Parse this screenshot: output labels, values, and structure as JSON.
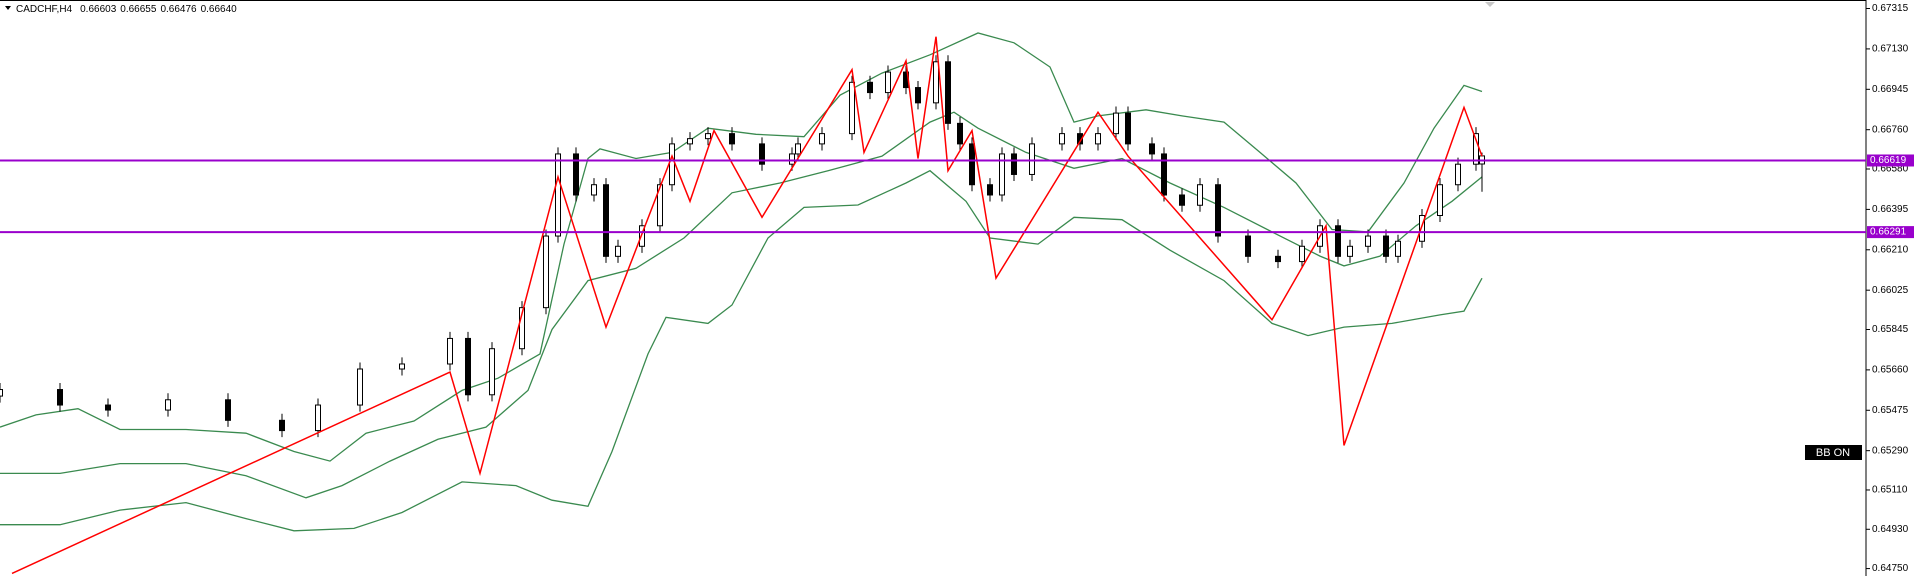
{
  "chart_data": {
    "type": "candlestick",
    "title": "CADCHF,H4",
    "header_values": [
      0.66603,
      0.66655,
      0.66476,
      {
        "value": 0.6664,
        "label": "0.66640"
      }
    ],
    "annotation": "BB ON",
    "xlim": [
      0,
      311
    ],
    "ylim": [
      0.64716,
      0.67354
    ],
    "yticks": [
      0.67315,
      {
        "value": 0.6713,
        "label": "0.67130"
      },
      0.66945,
      {
        "value": 0.6676,
        "label": "0.66760"
      },
      {
        "value": 0.6658,
        "label": "0.66580"
      },
      0.66395,
      {
        "value": 0.6621,
        "label": "0.66210"
      },
      0.66025,
      0.65845,
      {
        "value": 0.6566,
        "label": "0.65660"
      },
      0.65475,
      {
        "value": 0.6529,
        "label": "0.65290"
      },
      {
        "value": 0.6511,
        "label": "0.65110"
      },
      {
        "value": 0.6493,
        "label": "0.64930"
      },
      {
        "value": 0.6475,
        "label": "0.64750"
      }
    ],
    "up_color": "#ffffff",
    "down_color": "#000000",
    "candles": {
      "x": [
        0,
        10,
        18,
        28,
        38,
        47,
        53,
        60,
        67,
        75,
        78,
        82,
        87,
        91,
        93,
        96,
        99,
        101,
        103,
        107,
        110,
        112,
        115,
        118,
        122,
        127,
        132,
        133,
        137,
        142,
        145,
        148,
        151,
        153,
        156,
        158,
        160,
        162,
        165,
        167,
        169,
        172,
        177,
        180,
        183,
        186,
        188,
        192,
        194,
        197,
        200,
        203,
        208,
        213,
        217,
        220,
        223,
        225,
        228,
        231,
        233,
        237,
        240,
        243,
        246,
        247
      ],
      "open": [
        0.6554,
        0.6557,
        0.65499,
        0.65476,
        0.65523,
        0.65429,
        0.65382,
        0.65499,
        0.65664,
        0.65687,
        0.65804,
        0.65546,
        0.65757,
        0.65945,
        0.66273,
        0.66649,
        0.66461,
        0.66508,
        0.6618,
        0.66226,
        0.6632,
        0.66508,
        0.66695,
        0.66719,
        0.66742,
        0.66695,
        0.66602,
        0.66649,
        0.66695,
        0.66742,
        0.66977,
        0.6693,
        0.67024,
        0.66953,
        0.66883,
        0.67071,
        0.66789,
        0.66695,
        0.66508,
        0.66461,
        0.66649,
        0.66555,
        0.66695,
        0.66742,
        0.66695,
        0.66742,
        0.66836,
        0.66695,
        0.66649,
        0.66461,
        0.66414,
        0.66508,
        0.66273,
        0.6618,
        0.66156,
        0.66226,
        0.6632,
        0.6618,
        0.66226,
        0.66273,
        0.6618,
        0.66249,
        0.66367,
        0.66508,
        0.66602,
        0.66603
      ],
      "high": [
        0.656,
        0.656,
        0.65529,
        0.65553,
        0.65553,
        0.65459,
        0.65529,
        0.65694,
        0.65717,
        0.65834,
        0.65834,
        0.65787,
        0.65975,
        0.66303,
        0.66679,
        0.66679,
        0.66538,
        0.66538,
        0.66256,
        0.6635,
        0.66538,
        0.66725,
        0.66749,
        0.66772,
        0.66772,
        0.66725,
        0.66679,
        0.66725,
        0.66772,
        0.67007,
        0.67007,
        0.67054,
        0.67054,
        0.66983,
        0.67101,
        0.67101,
        0.66819,
        0.66725,
        0.66538,
        0.66679,
        0.66679,
        0.66725,
        0.66772,
        0.66772,
        0.66772,
        0.66866,
        0.66866,
        0.66725,
        0.66679,
        0.66491,
        0.66538,
        0.66538,
        0.66303,
        0.6621,
        0.66256,
        0.6635,
        0.6635,
        0.66256,
        0.66303,
        0.66303,
        0.66279,
        0.66397,
        0.66538,
        0.66632,
        0.66772,
        0.66655
      ],
      "low": [
        0.6551,
        0.65469,
        0.65446,
        0.65446,
        0.65399,
        0.65352,
        0.65352,
        0.65469,
        0.65634,
        0.65657,
        0.65516,
        0.65516,
        0.65727,
        0.65915,
        0.66243,
        0.66431,
        0.66431,
        0.6615,
        0.6615,
        0.66196,
        0.6629,
        0.66478,
        0.66665,
        0.66689,
        0.66665,
        0.66572,
        0.66572,
        0.66619,
        0.66665,
        0.66712,
        0.669,
        0.669,
        0.66923,
        0.66853,
        0.66853,
        0.66759,
        0.66665,
        0.66478,
        0.66431,
        0.66431,
        0.66525,
        0.66525,
        0.66665,
        0.66665,
        0.66665,
        0.66712,
        0.66665,
        0.66619,
        0.66431,
        0.66384,
        0.66384,
        0.66243,
        0.6615,
        0.66126,
        0.66126,
        0.66196,
        0.6615,
        0.6615,
        0.66196,
        0.6615,
        0.6615,
        0.66219,
        0.66337,
        0.66478,
        0.66572,
        0.66476
      ],
      "close": [
        0.6557,
        0.65499,
        0.65476,
        0.65523,
        0.65429,
        0.65382,
        0.65499,
        0.65664,
        0.65687,
        0.65804,
        0.65546,
        0.65757,
        0.65945,
        0.66273,
        0.66649,
        0.66461,
        0.66508,
        0.6618,
        0.66226,
        0.6632,
        0.66508,
        0.66695,
        0.66719,
        0.66742,
        0.66695,
        0.66602,
        0.66649,
        0.66695,
        0.66742,
        0.66977,
        0.6693,
        0.67024,
        0.66953,
        0.66883,
        0.67071,
        0.66789,
        0.66695,
        0.66508,
        0.66461,
        0.66649,
        0.66555,
        0.66695,
        0.66742,
        0.66695,
        0.66742,
        0.66836,
        0.66695,
        0.66649,
        0.66461,
        0.66414,
        0.66508,
        0.66273,
        0.6618,
        0.66156,
        0.66226,
        0.6632,
        0.6618,
        0.66226,
        0.66273,
        0.6618,
        0.66249,
        0.66367,
        0.66508,
        0.66602,
        0.66742,
        0.6664
      ]
    },
    "bands": [
      {
        "color": "#3a8a4f",
        "x": [
          0,
          6,
          13,
          20,
          31,
          41,
          49,
          55,
          61,
          69,
          77,
          83,
          90,
          94,
          98,
          100,
          106,
          112,
          118,
          126,
          134,
          140,
          147,
          155,
          163,
          169,
          175,
          179,
          183,
          191,
          197,
          204,
          210,
          216,
          222,
          228,
          234,
          239,
          244,
          247
        ],
        "values": [
          0.65398,
          0.65454,
          0.65482,
          0.65387,
          0.65387,
          0.6537,
          0.65286,
          0.65242,
          0.6537,
          0.65426,
          0.65566,
          0.65622,
          0.65733,
          0.66236,
          0.66628,
          0.66672,
          0.66628,
          0.66656,
          0.66767,
          0.66739,
          0.66728,
          0.66918,
          0.67019,
          0.67103,
          0.67203,
          0.67158,
          0.67047,
          0.66795,
          0.66823,
          0.66851,
          0.66823,
          0.66795,
          0.66656,
          0.66516,
          0.66303,
          0.66292,
          0.66516,
          0.66767,
          0.66963,
          0.66935
        ]
      },
      {
        "color": "#3a8a4f",
        "x": [
          0,
          10,
          20,
          31,
          41,
          51,
          57,
          65,
          73,
          81,
          88,
          92,
          98,
          106,
          114,
          122,
          130,
          138,
          147,
          155,
          159,
          163,
          171,
          179,
          187,
          195,
          204,
          212,
          220,
          224,
          230,
          236,
          242,
          247
        ],
        "values": [
          0.65186,
          0.65186,
          0.65231,
          0.65231,
          0.65175,
          0.65074,
          0.6513,
          0.65242,
          0.65342,
          0.65398,
          0.65566,
          0.65845,
          0.66069,
          0.66125,
          0.66264,
          0.66471,
          0.66516,
          0.66572,
          0.66639,
          0.66795,
          0.6684,
          0.66767,
          0.66656,
          0.66583,
          0.66628,
          0.66516,
          0.66404,
          0.66292,
          0.66181,
          0.66136,
          0.66181,
          0.6632,
          0.66432,
          0.66544
        ]
      },
      {
        "color": "#3a8a4f",
        "x": [
          0,
          10,
          20,
          31,
          41,
          49,
          59,
          67,
          77,
          86,
          92,
          98,
          102,
          108,
          111,
          118,
          122,
          128,
          134,
          143,
          151,
          155,
          161,
          165,
          173,
          179,
          187,
          195,
          204,
          212,
          218,
          224,
          232,
          240,
          244,
          247
        ],
        "values": [
          0.64951,
          0.64951,
          0.65018,
          0.65052,
          0.64979,
          0.64923,
          0.64934,
          0.65007,
          0.65147,
          0.6513,
          0.65063,
          0.65035,
          0.65286,
          0.65733,
          0.65901,
          0.65873,
          0.65957,
          0.66264,
          0.66404,
          0.66415,
          0.66516,
          0.66572,
          0.66432,
          0.66264,
          0.66236,
          0.66359,
          0.66348,
          0.66208,
          0.66069,
          0.65873,
          0.65817,
          0.65856,
          0.65873,
          0.65912,
          0.65929,
          0.6608
        ]
      }
    ],
    "zigzag": {
      "color": "#ff0000",
      "x": [
        2,
        75,
        80,
        93,
        101,
        112,
        115,
        119,
        127,
        142,
        144,
        151,
        153,
        156,
        158,
        162,
        166,
        183,
        188,
        212,
        221,
        224,
        244,
        247
      ],
      "values": [
        0.64728,
        0.6565,
        0.65186,
        0.66544,
        0.65856,
        0.66639,
        0.66432,
        0.66756,
        0.66359,
        0.67035,
        0.66656,
        0.67075,
        0.66628,
        0.67186,
        0.66572,
        0.66756,
        0.6608,
        0.6684,
        0.66639,
        0.6589,
        0.6632,
        0.65314,
        0.66862,
        0.66639
      ]
    },
    "price_lines": [
      {
        "value": 0.66619,
        "color": "#9900cc"
      },
      {
        "value": 0.66291,
        "color": "#9900cc"
      }
    ]
  }
}
